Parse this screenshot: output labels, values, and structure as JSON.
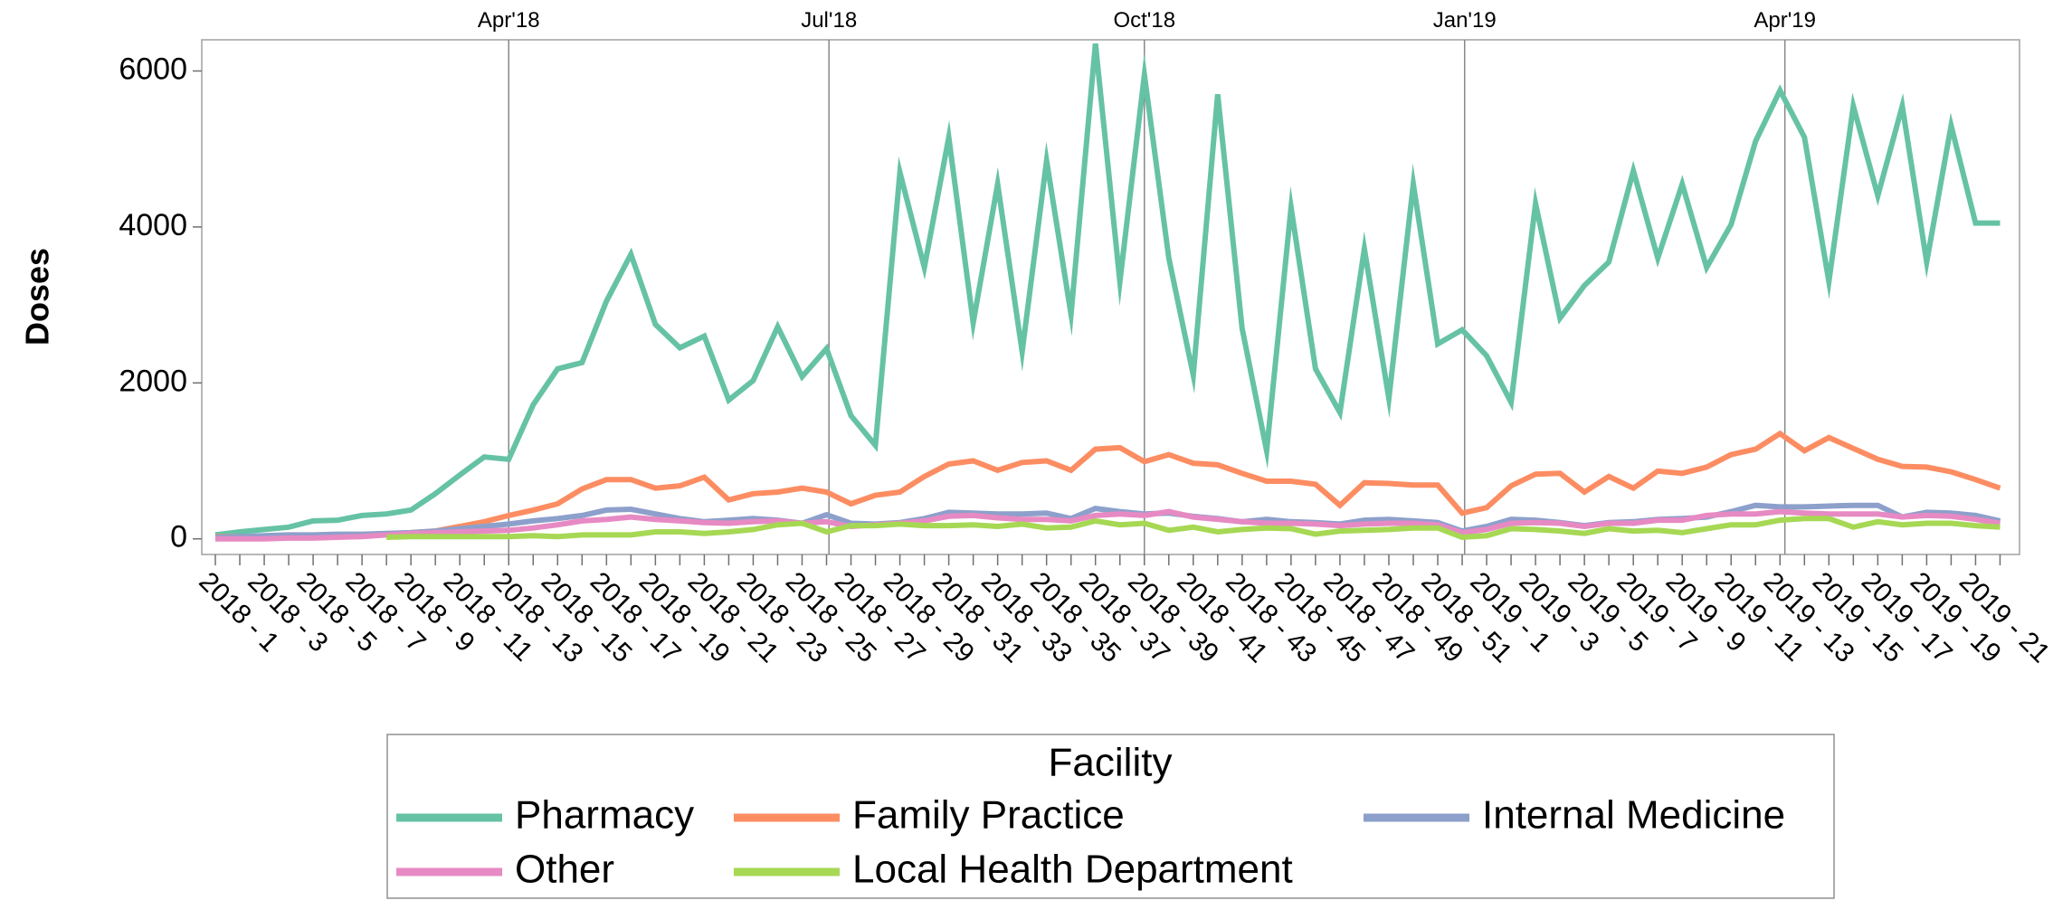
{
  "chart_data": {
    "type": "line",
    "y_label": "Doses",
    "categories": [
      "2018 - 1",
      null,
      "2018 - 3",
      null,
      "2018 - 5",
      null,
      "2018 - 7",
      null,
      "2018 - 9",
      null,
      "2018 - 11",
      null,
      "2018 - 13",
      null,
      "2018 - 15",
      null,
      "2018 - 17",
      null,
      "2018 - 19",
      null,
      "2018 - 21",
      null,
      "2018 - 23",
      null,
      "2018 - 25",
      null,
      "2018 - 27",
      null,
      "2018 - 29",
      null,
      "2018 - 31",
      null,
      "2018 - 33",
      null,
      "2018 - 35",
      null,
      "2018 - 37",
      null,
      "2018 - 39",
      null,
      "2018 - 41",
      null,
      "2018 - 43",
      null,
      "2018 - 45",
      null,
      "2018 - 47",
      null,
      "2018 - 49",
      null,
      "2018 - 51",
      null,
      "2019 - 1",
      null,
      "2019 - 3",
      null,
      "2019 - 5",
      null,
      "2019 - 7",
      null,
      "2019 - 9",
      null,
      "2019 - 11",
      null,
      "2019 - 13",
      null,
      "2019 - 15",
      null,
      "2019 - 17",
      null,
      "2019 - 19",
      null,
      "2019 - 21",
      null
    ],
    "series": [
      {
        "name": "Pharmacy",
        "color": "#66c2a5",
        "values": [
          50,
          90,
          120,
          150,
          230,
          240,
          300,
          320,
          370,
          580,
          820,
          1050,
          1020,
          1720,
          2180,
          2260,
          3050,
          3650,
          2750,
          2450,
          2600,
          1780,
          2030,
          2720,
          2080,
          2440,
          1580,
          1200,
          4700,
          3480,
          5150,
          2770,
          4550,
          2400,
          4850,
          2880,
          6350,
          3300,
          5950,
          3600,
          2100,
          5700,
          2700,
          1130,
          4250,
          2180,
          1620,
          3720,
          1800,
          4550,
          2500,
          2680,
          2350,
          1750,
          4300,
          2830,
          3250,
          3550,
          4720,
          3600,
          4550,
          3480,
          4030,
          5100,
          5750,
          5150,
          3300,
          5550,
          4400,
          5550,
          3550,
          5300,
          4050,
          4050
        ]
      },
      {
        "name": "Family Practice",
        "color": "#fc8d62",
        "values": [
          30,
          30,
          30,
          30,
          40,
          40,
          50,
          60,
          80,
          100,
          160,
          220,
          300,
          370,
          450,
          640,
          760,
          760,
          650,
          680,
          790,
          500,
          580,
          600,
          650,
          600,
          450,
          560,
          600,
          800,
          960,
          1000,
          880,
          980,
          1000,
          880,
          1150,
          1170,
          990,
          1080,
          970,
          950,
          840,
          740,
          740,
          700,
          430,
          720,
          710,
          690,
          690,
          330,
          400,
          680,
          830,
          840,
          600,
          800,
          650,
          870,
          840,
          920,
          1080,
          1150,
          1350,
          1130,
          1300,
          1160,
          1020,
          930,
          920,
          860,
          760,
          650
        ]
      },
      {
        "name": "Internal Medicine",
        "color": "#8da0cb",
        "values": [
          20,
          30,
          40,
          50,
          50,
          60,
          60,
          70,
          80,
          100,
          130,
          160,
          190,
          230,
          260,
          300,
          370,
          380,
          320,
          260,
          220,
          240,
          260,
          240,
          200,
          310,
          200,
          190,
          210,
          260,
          340,
          330,
          320,
          320,
          330,
          260,
          390,
          350,
          320,
          330,
          290,
          260,
          220,
          250,
          220,
          210,
          190,
          240,
          250,
          230,
          210,
          100,
          160,
          250,
          240,
          210,
          170,
          210,
          220,
          250,
          260,
          280,
          350,
          430,
          410,
          410,
          420,
          430,
          430,
          280,
          340,
          330,
          300,
          230
        ]
      },
      {
        "name": "Other",
        "color": "#e78ac3",
        "values": [
          0,
          0,
          0,
          10,
          10,
          20,
          30,
          50,
          70,
          80,
          90,
          100,
          110,
          140,
          180,
          230,
          250,
          280,
          250,
          230,
          210,
          200,
          220,
          230,
          200,
          220,
          160,
          180,
          200,
          230,
          290,
          300,
          270,
          250,
          250,
          230,
          300,
          320,
          300,
          350,
          280,
          250,
          220,
          200,
          200,
          190,
          170,
          190,
          200,
          200,
          180,
          80,
          120,
          200,
          210,
          200,
          160,
          200,
          200,
          240,
          240,
          300,
          320,
          320,
          350,
          330,
          320,
          320,
          320,
          280,
          300,
          290,
          250,
          200
        ]
      },
      {
        "name": "Local Health Department",
        "color": "#a6d854",
        "values": [
          null,
          null,
          null,
          null,
          null,
          null,
          null,
          20,
          30,
          30,
          30,
          30,
          30,
          40,
          30,
          50,
          50,
          50,
          90,
          90,
          70,
          90,
          120,
          180,
          200,
          90,
          170,
          170,
          190,
          170,
          170,
          180,
          160,
          190,
          140,
          150,
          230,
          180,
          200,
          110,
          150,
          90,
          120,
          140,
          130,
          60,
          100,
          110,
          120,
          140,
          140,
          20,
          40,
          130,
          120,
          100,
          70,
          130,
          100,
          110,
          80,
          130,
          180,
          180,
          240,
          260,
          260,
          150,
          220,
          180,
          200,
          200,
          170,
          150
        ]
      }
    ],
    "ylim": [
      -200,
      6400
    ],
    "yticks": [
      0,
      2000,
      4000,
      6000
    ],
    "reference_lines": [
      {
        "label": "Apr'18",
        "x": 12
      },
      {
        "label": "Jul'18",
        "x": 25.1
      },
      {
        "label": "Oct'18",
        "x": 38
      },
      {
        "label": "Jan'19",
        "x": 51.1
      },
      {
        "label": "Apr'19",
        "x": 64.2
      }
    ],
    "legend": {
      "title": "Facility",
      "position": "bottom"
    }
  }
}
